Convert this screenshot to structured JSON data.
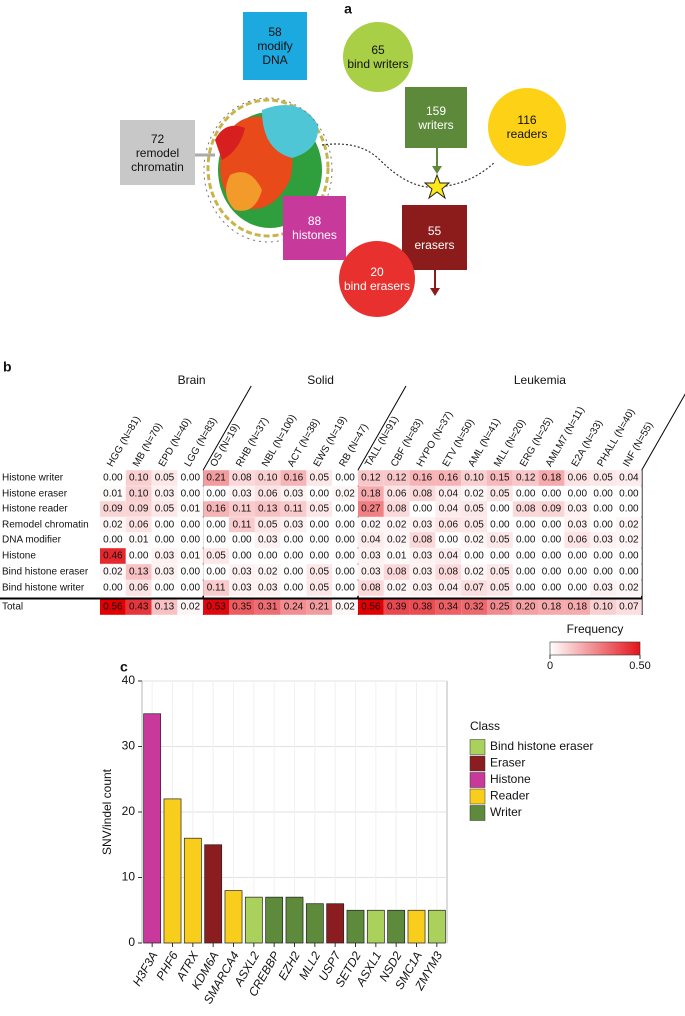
{
  "panel_a": {
    "letter": "a",
    "nodes": [
      {
        "count": 58,
        "label": "modify DNA"
      },
      {
        "count": 65,
        "label": "bind writers"
      },
      {
        "count": 159,
        "label": "writers"
      },
      {
        "count": 116,
        "label": "readers"
      },
      {
        "count": 72,
        "label": "remodel chromatin"
      },
      {
        "count": 88,
        "label": "histones"
      },
      {
        "count": 55,
        "label": "erasers"
      },
      {
        "count": 20,
        "label": "bind erasers"
      }
    ]
  },
  "chart_data": [
    {
      "type": "heatmap",
      "letter": "b",
      "groups": [
        {
          "name": "Brain",
          "columns": [
            "HGG (N=81)",
            "MB (N=70)",
            "EPD (N=40)",
            "LGG (N=83)"
          ]
        },
        {
          "name": "Solid",
          "columns": [
            "OS (N=19)",
            "RHB (N=37)",
            "NBL (N=100)",
            "ACT (N=38)",
            "EWS (N=19)",
            "RB (N=47)"
          ]
        },
        {
          "name": "Leukemia",
          "columns": [
            "TALL (N=91)",
            "CBF (N=83)",
            "HYPO (N=37)",
            "ETV (N=50)",
            "AML (N=41)",
            "MLL (N=20)",
            "ERG (N=25)",
            "AMLM7 (N=11)",
            "E2A (N=33)",
            "PHALL (N=40)",
            "INF (N=55)"
          ]
        }
      ],
      "rows": [
        "Histone writer",
        "Histone eraser",
        "Histone reader",
        "Remodel chromatin",
        "DNA modifier",
        "Histone",
        "Bind histone eraser",
        "Bind histone writer",
        "Total"
      ],
      "values": [
        [
          0,
          0.1,
          0.05,
          0,
          0.21,
          0.08,
          0.1,
          0.16,
          0.05,
          0,
          0.12,
          0.12,
          0.16,
          0.16,
          0.1,
          0.15,
          0.12,
          0.18,
          0.06,
          0.05,
          0.04
        ],
        [
          0.01,
          0.1,
          0.03,
          0,
          0,
          0.03,
          0.06,
          0.03,
          0,
          0.02,
          0.18,
          0.06,
          0.08,
          0.04,
          0.02,
          0.05,
          0,
          0,
          0,
          0,
          0
        ],
        [
          0.09,
          0.09,
          0.05,
          0.01,
          0.16,
          0.11,
          0.13,
          0.11,
          0.05,
          0,
          0.27,
          0.08,
          0,
          0.04,
          0.05,
          0,
          0.08,
          0.09,
          0.03,
          0,
          0
        ],
        [
          0.02,
          0.06,
          0,
          0,
          0,
          0.11,
          0.05,
          0.03,
          0,
          0,
          0.02,
          0.02,
          0.03,
          0.06,
          0.05,
          0,
          0,
          0,
          0.03,
          0,
          0.02
        ],
        [
          0,
          0.01,
          0,
          0,
          0,
          0,
          0.03,
          0,
          0,
          0,
          0.04,
          0.02,
          0.08,
          0,
          0.02,
          0.05,
          0,
          0,
          0.06,
          0.03,
          0.02
        ],
        [
          0.46,
          0,
          0.03,
          0.01,
          0.05,
          0,
          0,
          0,
          0,
          0,
          0.03,
          0.01,
          0.03,
          0.04,
          0,
          0,
          0,
          0,
          0,
          0,
          0
        ],
        [
          0.02,
          0.13,
          0.03,
          0,
          0,
          0.03,
          0.02,
          0,
          0.05,
          0,
          0.03,
          0.08,
          0.03,
          0.08,
          0.02,
          0.05,
          0,
          0,
          0,
          0,
          0
        ],
        [
          0,
          0.06,
          0,
          0,
          0.11,
          0.03,
          0.03,
          0,
          0.05,
          0,
          0.08,
          0.02,
          0.03,
          0.04,
          0.07,
          0.05,
          0,
          0,
          0,
          0.03,
          0.02
        ],
        [
          0.56,
          0.43,
          0.13,
          0.02,
          0.53,
          0.35,
          0.31,
          0.24,
          0.21,
          0.02,
          0.56,
          0.39,
          0.38,
          0.34,
          0.32,
          0.25,
          0.2,
          0.18,
          0.18,
          0.1,
          0.07
        ]
      ],
      "value_labels": [
        [
          "0.00",
          "0.10",
          "0.05",
          "0.00",
          "0.21",
          "0.08",
          "0.10",
          "0.16",
          "0.05",
          "0.00",
          "0.12",
          "0.12",
          "0.16",
          "0.16",
          "0.10",
          "0.15",
          "0.12",
          "0.18",
          "0.06",
          "0.05",
          "0.04"
        ],
        [
          "0.01",
          "0.10",
          "0.03",
          "0.00",
          "0.00",
          "0.03",
          "0.06",
          "0.03",
          "0.00",
          "0.02",
          "0.18",
          "0.06",
          "0.08",
          "0.04",
          "0.02",
          "0.05",
          "0.00",
          "0.00",
          "0.00",
          "0.00",
          "0.00"
        ],
        [
          "0.09",
          "0.09",
          "0.05",
          "0.01",
          "0.16",
          "0.11",
          "0.13",
          "0.11",
          "0.05",
          "0.00",
          "0.27",
          "0.08",
          "0.00",
          "0.04",
          "0.05",
          "0.00",
          "0.08",
          "0.09",
          "0.03",
          "0.00",
          "0.00"
        ],
        [
          "0.02",
          "0.06",
          "0.00",
          "0.00",
          "0.00",
          "0.11",
          "0.05",
          "0.03",
          "0.00",
          "0.00",
          "0.02",
          "0.02",
          "0.03",
          "0.06",
          "0.05",
          "0.00",
          "0.00",
          "0.00",
          "0.03",
          "0.00",
          "0.02"
        ],
        [
          "0.00",
          "0.01",
          "0.00",
          "0.00",
          "0.00",
          "0.00",
          "0.03",
          "0.00",
          "0.00",
          "0.00",
          "0.04",
          "0.02",
          "0.08",
          "0.00",
          "0.02",
          "0.05",
          "0.00",
          "0.00",
          "0.06",
          "0.03",
          "0.02"
        ],
        [
          "0.46",
          "0.00",
          "0.03",
          "0.01",
          "0.05",
          "0.00",
          "0.00",
          "0.00",
          "0.00",
          "0.00",
          "0.03",
          "0.01",
          "0.03",
          "0.04",
          "0.00",
          "0.00",
          "0.00",
          "0.00",
          "0.00",
          "0.00",
          "0.00"
        ],
        [
          "0.02",
          "0.13",
          "0.03",
          "0.00",
          "0.00",
          "0.03",
          "0.02",
          "0.00",
          "0.05",
          "0.00",
          "0.03",
          "0.08",
          "0.03",
          "0.08",
          "0.02",
          "0.05",
          "0.00",
          "0.00",
          "0.00",
          "0.00",
          "0.00"
        ],
        [
          "0.00",
          "0.06",
          "0.00",
          "0.00",
          "0.11",
          "0.03",
          "0.03",
          "0.00",
          "0.05",
          "0.00",
          "0.08",
          "0.02",
          "0.03",
          "0.04",
          "0.07",
          "0.05",
          "0.00",
          "0.00",
          "0.00",
          "0.03",
          "0.02"
        ],
        [
          "0.56",
          "0.43",
          "0.13",
          "0.02",
          "0.53",
          "0.35",
          "0.31",
          "0.24",
          "0.21",
          "0.02",
          "0.56",
          "0.39",
          "0.38",
          "0.34",
          "0.32",
          "0.25",
          "0.20",
          "0.18",
          "0.18",
          "0.10",
          "0.07"
        ]
      ],
      "colorbar_title": "Frequency",
      "clim": [
        0,
        0.5
      ],
      "colormap": [
        "#ffffff",
        "#e3141c"
      ],
      "cticks": [
        0,
        {
          "value": 0.5,
          "label": "0.50"
        }
      ]
    },
    {
      "type": "bar",
      "letter": "c",
      "ylabel": "SNV/indel count",
      "categories": [
        "H3F3A",
        "PHF6",
        "ATRX",
        "KDM6A",
        "SMARCA4",
        "ASXL2",
        "CREBBP",
        "EZH2",
        "MLL2",
        "USP7",
        "SETD2",
        "ASXL1",
        "NSD2",
        "SMC1A",
        "ZMYM3"
      ],
      "legend_title": "Class",
      "series": [
        {
          "name": "Bind histone eraser",
          "color": "#a9d15b",
          "values": [
            null,
            null,
            null,
            null,
            null,
            7,
            null,
            null,
            null,
            null,
            null,
            5,
            null,
            null,
            5
          ]
        },
        {
          "name": "Eraser",
          "color": "#8b1c1f",
          "values": [
            null,
            null,
            null,
            15,
            null,
            null,
            null,
            null,
            null,
            6,
            null,
            null,
            null,
            null,
            null
          ]
        },
        {
          "name": "Histone",
          "color": "#c8399b",
          "values": [
            35,
            null,
            null,
            null,
            null,
            null,
            null,
            null,
            null,
            null,
            null,
            null,
            null,
            null,
            null
          ]
        },
        {
          "name": "Reader",
          "color": "#f8cd1c",
          "values": [
            null,
            22,
            16,
            null,
            8,
            null,
            null,
            null,
            null,
            null,
            null,
            null,
            null,
            5,
            null
          ]
        },
        {
          "name": "Writer",
          "color": "#5d8a3b",
          "values": [
            null,
            null,
            null,
            null,
            null,
            null,
            7,
            7,
            6,
            null,
            5,
            null,
            5,
            null,
            null
          ]
        }
      ],
      "ylim": [
        0,
        40
      ],
      "yticks": [
        0,
        10,
        20,
        30,
        40
      ],
      "grid": true
    }
  ]
}
